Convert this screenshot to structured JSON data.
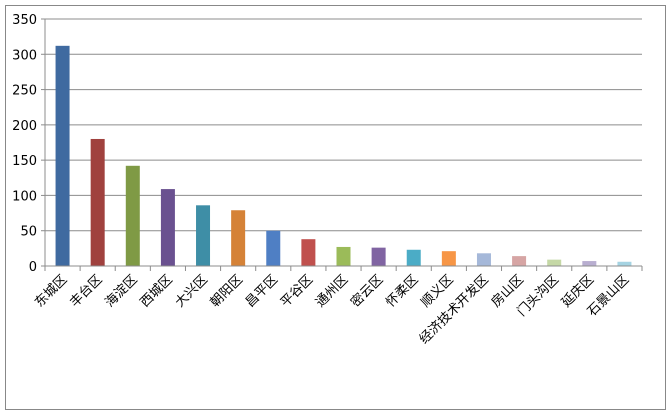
{
  "chart_data": {
    "type": "bar",
    "categories": [
      "东城区",
      "丰台区",
      "海淀区",
      "西城区",
      "大兴区",
      "朝阳区",
      "昌平区",
      "平谷区",
      "通州区",
      "密云区",
      "怀柔区",
      "顺义区",
      "经济技术开发区",
      "房山区",
      "门头沟区",
      "延庆区",
      "石景山区"
    ],
    "values": [
      312,
      180,
      142,
      109,
      86,
      79,
      50,
      38,
      27,
      26,
      23,
      21,
      18,
      14,
      9,
      7,
      6
    ],
    "colors": [
      "#3f6aa0",
      "#a0413e",
      "#7f9a45",
      "#6a5190",
      "#3e8ea6",
      "#d58237",
      "#4f7fc4",
      "#c0504d",
      "#9bbb59",
      "#8064a2",
      "#4bacc6",
      "#f79646",
      "#a5b8d9",
      "#d6a5a4",
      "#c5d8a6",
      "#b8aed0",
      "#a5d3e2"
    ],
    "ylim": [
      0,
      350
    ],
    "yticks": [
      0,
      50,
      100,
      150,
      200,
      250,
      300,
      350
    ],
    "grid": true
  }
}
